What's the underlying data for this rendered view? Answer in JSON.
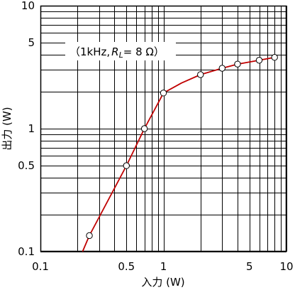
{
  "chart_data": {
    "type": "line",
    "xlabel": "入力 (W)",
    "ylabel": "出力 (W)",
    "xscale": "log",
    "yscale": "log",
    "xlim": [
      0.1,
      10
    ],
    "ylim": [
      0.1,
      10
    ],
    "grid": true,
    "x_tick_labels": [
      "0.1",
      "0.5",
      "1",
      "5",
      "10"
    ],
    "y_tick_labels": [
      "0.1",
      "0.5",
      "1",
      "5",
      "10"
    ],
    "annotation": "（1kHz, RL= 8 Ω）",
    "annotation_parts": {
      "open": "（1kHz,",
      "r": "R",
      "sub": "L",
      "rest": "= 8 Ω）"
    },
    "curve": [
      {
        "x": 0.22,
        "y": 0.1
      },
      {
        "x": 0.25,
        "y": 0.135
      },
      {
        "x": 0.5,
        "y": 0.5
      },
      {
        "x": 0.7,
        "y": 1.0
      },
      {
        "x": 0.9,
        "y": 1.6
      },
      {
        "x": 1.0,
        "y": 1.95
      },
      {
        "x": 1.4,
        "y": 2.35
      },
      {
        "x": 2.0,
        "y": 2.75
      },
      {
        "x": 3.0,
        "y": 3.1
      },
      {
        "x": 4.0,
        "y": 3.35
      },
      {
        "x": 6.0,
        "y": 3.6
      },
      {
        "x": 8.0,
        "y": 3.8
      }
    ],
    "markers": [
      {
        "x": 0.25,
        "y": 0.135
      },
      {
        "x": 0.5,
        "y": 0.5
      },
      {
        "x": 0.7,
        "y": 1.0
      },
      {
        "x": 1.0,
        "y": 1.95
      },
      {
        "x": 2.0,
        "y": 2.75
      },
      {
        "x": 3.0,
        "y": 3.1
      },
      {
        "x": 4.0,
        "y": 3.35
      },
      {
        "x": 6.0,
        "y": 3.6
      },
      {
        "x": 8.0,
        "y": 3.8
      }
    ],
    "colors": {
      "line": "#c00000",
      "grid": "#000000",
      "marker_fill": "#ffffff"
    }
  }
}
